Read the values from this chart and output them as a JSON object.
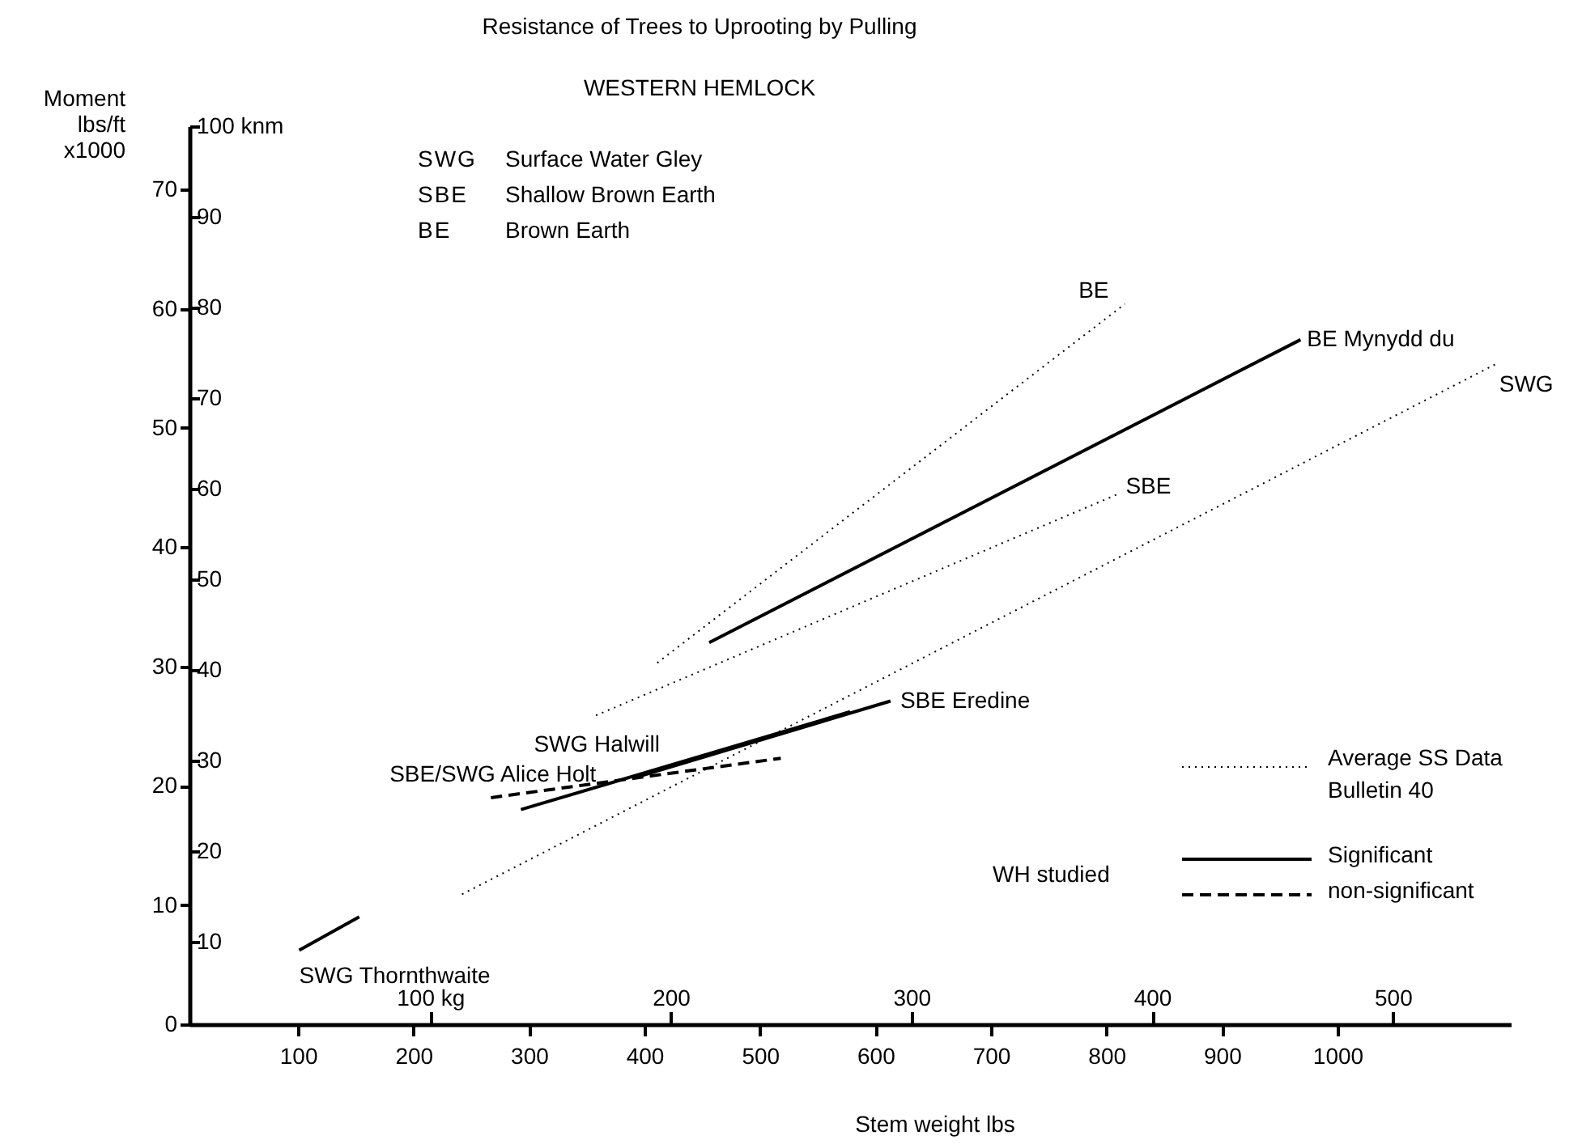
{
  "chart_data": {
    "type": "line",
    "title": "Resistance of Trees to Uprooting by Pulling",
    "subtitle": "WESTERN HEMLOCK",
    "xlabel": "Stem weight lbs",
    "ylabel": "Moment lbs/ft x1000",
    "xlim": [
      6,
      1150
    ],
    "xticks": [
      100,
      200,
      300,
      400,
      500,
      600,
      700,
      800,
      900,
      1000
    ],
    "x2lim": [
      0,
      549
    ],
    "x2ticks": [
      {
        "value": 100,
        "label": "100 kg"
      },
      200,
      300,
      400,
      500
    ],
    "ylim": [
      0,
      75.3
    ],
    "yticks": [
      0,
      10,
      20,
      30,
      40,
      50,
      60,
      70
    ],
    "y2lim": [
      0.9,
      100
    ],
    "y2ticks": [
      10,
      20,
      30,
      40,
      50,
      60,
      70,
      80,
      90,
      {
        "value": 100,
        "label": "100 knm"
      }
    ],
    "grid": false,
    "series": [
      {
        "name": "BE",
        "color": "#000000",
        "line_style": "dotted",
        "x": [
          411,
          816
        ],
        "values": [
          30.3,
          60.4
        ]
      },
      {
        "name": "BE Mynydd du",
        "color": "#000000",
        "line_style": "solid",
        "x": [
          456,
          968
        ],
        "values": [
          32.0,
          57.4
        ]
      },
      {
        "name": "SBE",
        "color": "#000000",
        "line_style": "dotted",
        "x": [
          358,
          811
        ],
        "values": [
          25.9,
          44.5
        ]
      },
      {
        "name": "SWG",
        "color": "#000000",
        "line_style": "dotted",
        "x": [
          242,
          1140
        ],
        "values": [
          10.9,
          55.5
        ]
      },
      {
        "name": "SBE Eredine",
        "color": "#000000",
        "line_style": "solid",
        "x": [
          396,
          613
        ],
        "values": [
          20.8,
          27.1
        ]
      },
      {
        "name": "SWG Halwill",
        "color": "#000000",
        "line_style": "solid",
        "x": [
          293,
          578
        ],
        "values": [
          18.0,
          26.2
        ]
      },
      {
        "name": "SBE/SWG Alice Holt",
        "color": "#000000",
        "line_style": "dashed",
        "x": [
          267,
          518
        ],
        "values": [
          19.0,
          22.3
        ]
      },
      {
        "name": "SWG Thornthwaite",
        "color": "#000000",
        "line_style": "solid",
        "x": [
          101,
          153
        ],
        "values": [
          6.2,
          9.0
        ]
      }
    ],
    "annotations": [
      "SWG Surface Water Gley",
      "SBE Shallow Brown Earth",
      "BE Brown Earth",
      "Average SS Data Bulletin 40",
      "WH studied",
      "Significant",
      "non-significant"
    ]
  }
}
